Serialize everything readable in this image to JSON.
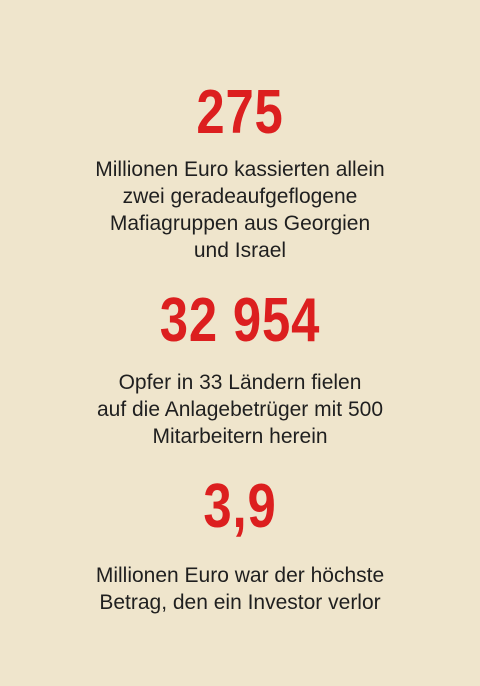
{
  "facts": [
    {
      "number": "275",
      "lines": [
        "Millionen Euro kassierten allein",
        "zwei geradeaufgeflogene",
        "Mafiagruppen aus Georgien",
        "und Israel"
      ]
    },
    {
      "number": "32 954",
      "lines": [
        "Opfer in 33 Ländern fielen",
        "auf die Anlagebetrüger mit 500",
        "Mitarbeitern herein"
      ]
    },
    {
      "number": "3,9",
      "lines": [
        "Millionen Euro war der höchste",
        "Betrag, den ein Investor verlor"
      ]
    }
  ],
  "colors": {
    "background": "#efe5cc",
    "accent": "#dc1f1f",
    "text": "#1f1f1f"
  }
}
